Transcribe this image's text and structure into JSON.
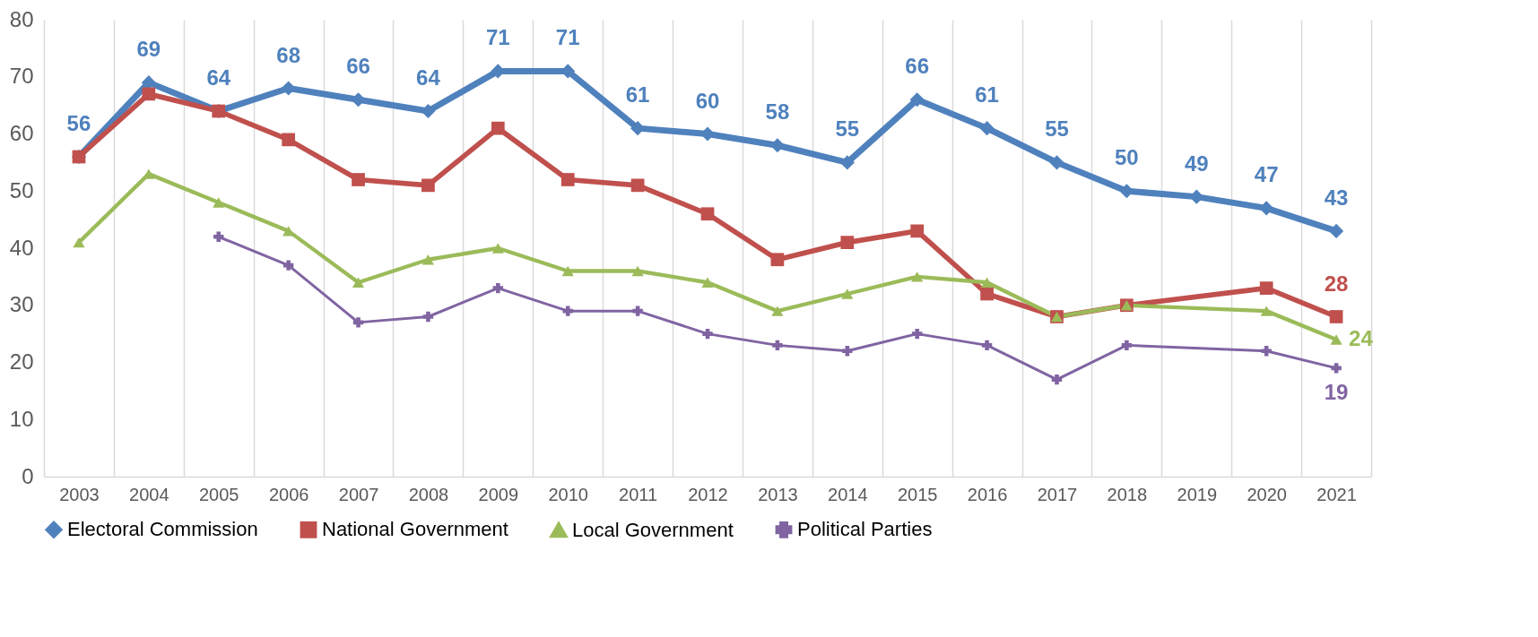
{
  "chart_data": {
    "type": "line",
    "categories": [
      "2003",
      "2004",
      "2005",
      "2006",
      "2007",
      "2008",
      "2009",
      "2010",
      "2011",
      "2012",
      "2013",
      "2014",
      "2015",
      "2016",
      "2017",
      "2018",
      "2019",
      "2020",
      "2021"
    ],
    "ylim": [
      0,
      80
    ],
    "yticks": [
      0,
      10,
      20,
      30,
      40,
      50,
      60,
      70,
      80
    ],
    "grid": "x",
    "legend": "bottom",
    "series": [
      {
        "name": "Electoral Commission",
        "color": "#4f81bd",
        "marker": "diamond",
        "values": [
          56,
          69,
          64,
          68,
          66,
          64,
          71,
          71,
          61,
          60,
          58,
          55,
          66,
          61,
          55,
          50,
          49,
          47,
          43
        ],
        "value_labels": [
          "56",
          "69",
          "64",
          "68",
          "66",
          "64",
          "71",
          "71",
          "61",
          "60",
          "58",
          "55",
          "66",
          "61",
          "55",
          "50",
          "49",
          "47",
          "43"
        ]
      },
      {
        "name": "National Government",
        "color": "#c0504d",
        "marker": "square",
        "values": [
          56,
          67,
          64,
          59,
          52,
          51,
          61,
          52,
          51,
          46,
          38,
          41,
          43,
          32,
          28,
          30,
          null,
          33,
          28
        ],
        "value_labels": [
          null,
          null,
          null,
          null,
          null,
          null,
          null,
          null,
          null,
          null,
          null,
          null,
          null,
          null,
          null,
          null,
          null,
          null,
          "28"
        ]
      },
      {
        "name": "Local Government",
        "color": "#9bbb59",
        "marker": "triangle",
        "values": [
          41,
          53,
          48,
          43,
          34,
          38,
          40,
          36,
          36,
          34,
          29,
          32,
          35,
          34,
          28,
          30,
          null,
          29,
          24
        ],
        "value_labels": [
          null,
          null,
          null,
          null,
          null,
          null,
          null,
          null,
          null,
          null,
          null,
          null,
          null,
          null,
          null,
          null,
          null,
          null,
          "24"
        ]
      },
      {
        "name": "Political Parties",
        "color": "#8064a2",
        "marker": "cross",
        "values": [
          null,
          null,
          42,
          37,
          27,
          28,
          33,
          29,
          29,
          25,
          23,
          22,
          25,
          23,
          17,
          23,
          null,
          22,
          19
        ],
        "value_labels": [
          null,
          null,
          null,
          null,
          null,
          null,
          null,
          null,
          null,
          null,
          null,
          null,
          null,
          null,
          null,
          null,
          null,
          null,
          "19"
        ]
      }
    ]
  }
}
